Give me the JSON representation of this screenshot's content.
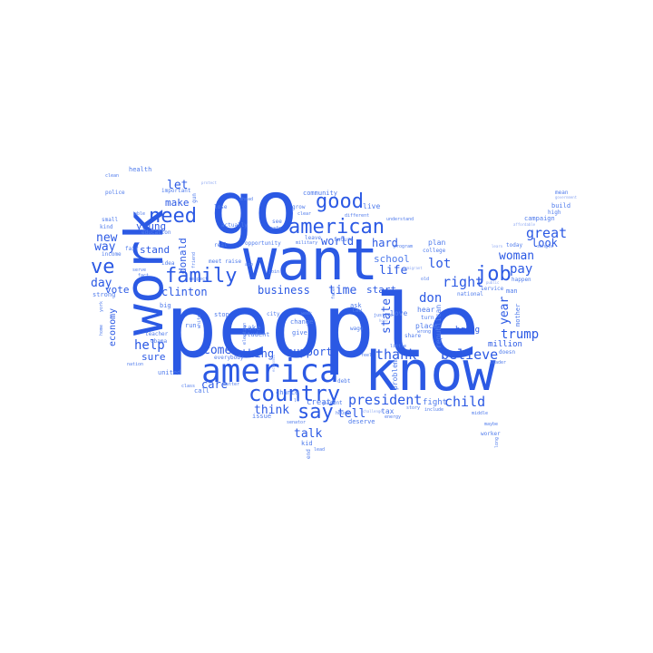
{
  "colors": {
    "primary": "#2b59e4",
    "secondary": "#4f7bec",
    "light": "#8fa9f3"
  },
  "words": {
    "people": "people",
    "go": "go",
    "want": "want",
    "know": "know",
    "work": "work",
    "america": "america",
    "american": "american",
    "country": "country",
    "need": "need",
    "family": "family",
    "good": "good",
    "ve": "ve",
    "say": "say",
    "job": "job",
    "president": "president",
    "believe": "believe",
    "child": "child",
    "thank": "thank",
    "right": "right",
    "lot": "lot",
    "great": "great",
    "woman": "woman",
    "look": "look",
    "pay": "pay",
    "trump": "trump",
    "year": "year",
    "state": "state",
    "don": "don",
    "life": "life",
    "school": "school",
    "hard": "hard",
    "world": "world",
    "time": "time",
    "business": "business",
    "think": "think",
    "tell": "tell",
    "talk": "talk",
    "help": "help",
    "come": "come",
    "support": "support",
    "thing": "thing",
    "clinton": "clinton",
    "let": "let",
    "make": "make",
    "young": "young",
    "stand": "stand",
    "donald": "donald",
    "new": "new",
    "way": "way",
    "vote": "vote",
    "day": "day",
    "economy": "economy",
    "sure": "sure",
    "care": "care",
    "start": "start",
    "create": "create",
    "fight": "fight",
    "bring": "bring",
    "million": "million",
    "mother": "mother",
    "plan": "plan",
    "place": "place",
    "hear": "hear",
    "love": "love",
    "republican": "republican",
    "problem": "problem",
    "tax": "tax",
    "live": "live",
    "community": "community",
    "health": "health",
    "important": "important",
    "gun": "gun",
    "police": "police",
    "kind": "kind",
    "small": "small",
    "income": "income",
    "strong": "strong",
    "education": "education",
    "fair": "fair",
    "idea": "idea",
    "obama": "obama",
    "big": "big",
    "run": "run",
    "stop": "stop",
    "take": "take",
    "student": "student",
    "change": "change",
    "real": "real",
    "opportunity": "opportunity",
    "actually": "actually",
    "lose": "lose",
    "raise": "raise",
    "meet": "meet",
    "respect": "respect",
    "friend": "friend",
    "white": "white",
    "teacher": "teacher",
    "united": "united",
    "nation": "nation",
    "everybody": "everybody",
    "matter": "matter",
    "call": "call",
    "class": "class",
    "issue": "issue",
    "chance": "chance",
    "kid": "kid",
    "end": "end",
    "senator": "senator",
    "deserve": "deserve",
    "parent": "parent",
    "house": "house",
    "wage": "wage",
    "debt": "debt",
    "future": "future",
    "grow": "grow",
    "clear": "clear",
    "leave": "leave",
    "military": "military",
    "see": "see",
    "city": "city",
    "give": "give",
    "safe": "safe",
    "ask": "ask",
    "week": "week",
    "campaign": "campaign",
    "build": "build",
    "mean": "mean",
    "today": "today",
    "happen": "happen",
    "man": "man",
    "national": "national",
    "doesn": "doesn",
    "middle": "middle",
    "maybe": "maybe",
    "worker": "worker",
    "long": "long",
    "leader": "leader",
    "service": "service",
    "college": "college",
    "share": "share",
    "turn": "turn",
    "program": "program",
    "immigrant": "immigrant",
    "understand": "understand",
    "different": "different",
    "high": "high",
    "affordable": "affordable",
    "single": "single",
    "learn": "learn",
    "government": "government",
    "justice": "justice",
    "hope": "hope",
    "wrong": "wrong",
    "law": "law",
    "energy": "energy",
    "story": "story",
    "include": "include",
    "challenge": "challenge",
    "serve": "serve",
    "fact": "fact",
    "clean": "clean",
    "able": "able",
    "protect": "protect",
    "ahead": "ahead",
    "home": "home",
    "york": "york",
    "election": "election",
    "economic": "economic",
    "face": "face",
    "feel": "feel",
    "old": "old",
    "little": "little",
    "lead": "lead",
    "ll": "ll",
    "join": "join",
    "ago": "ago",
    "public": "public"
  }
}
